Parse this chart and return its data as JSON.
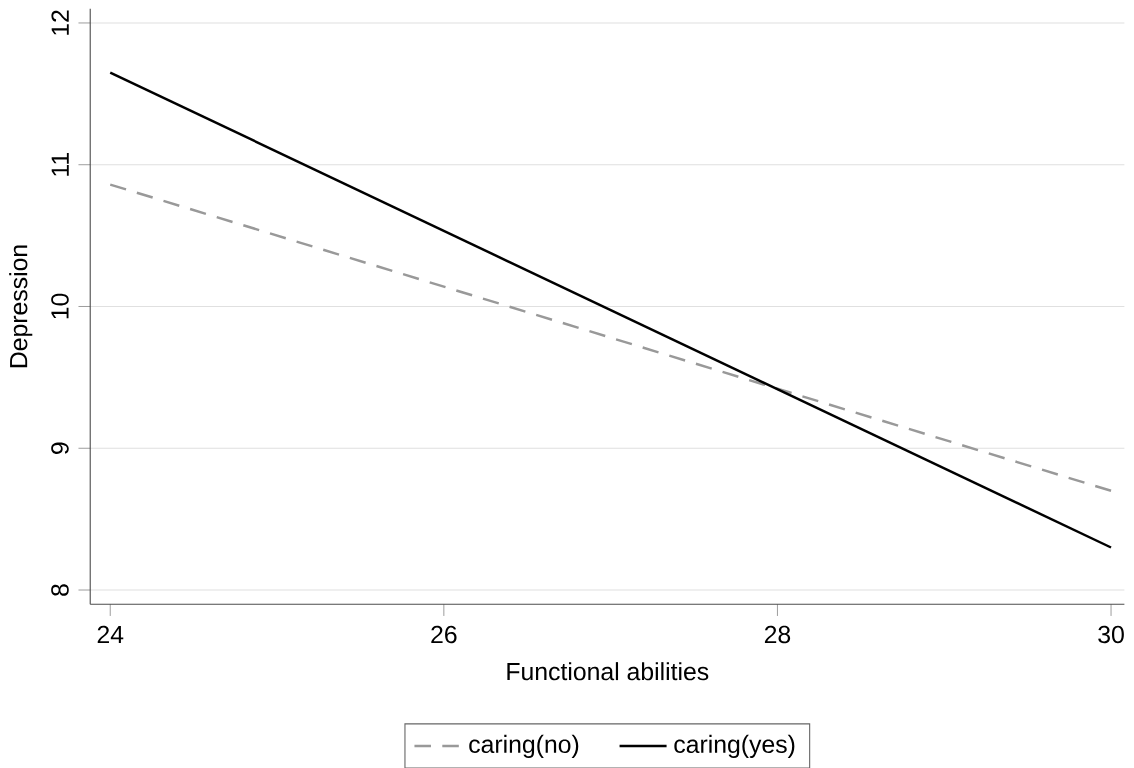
{
  "chart_data": {
    "type": "line",
    "xlabel": "Functional abilities",
    "ylabel": "Depression",
    "x": [
      24,
      30
    ],
    "series": [
      {
        "name": "caring(no)",
        "color": "#999999",
        "line_style": "dashed",
        "values": [
          10.86,
          8.7
        ]
      },
      {
        "name": "caring(yes)",
        "color": "#000000",
        "line_style": "solid",
        "values": [
          11.65,
          8.3
        ]
      }
    ],
    "xlim": [
      23.88,
      30.08
    ],
    "ylim": [
      7.9,
      12.1
    ],
    "xticks": [
      24,
      26,
      28,
      30
    ],
    "yticks": [
      8,
      9,
      10,
      11,
      12
    ],
    "grid": "y",
    "legend": "bottom",
    "marker": "none"
  }
}
